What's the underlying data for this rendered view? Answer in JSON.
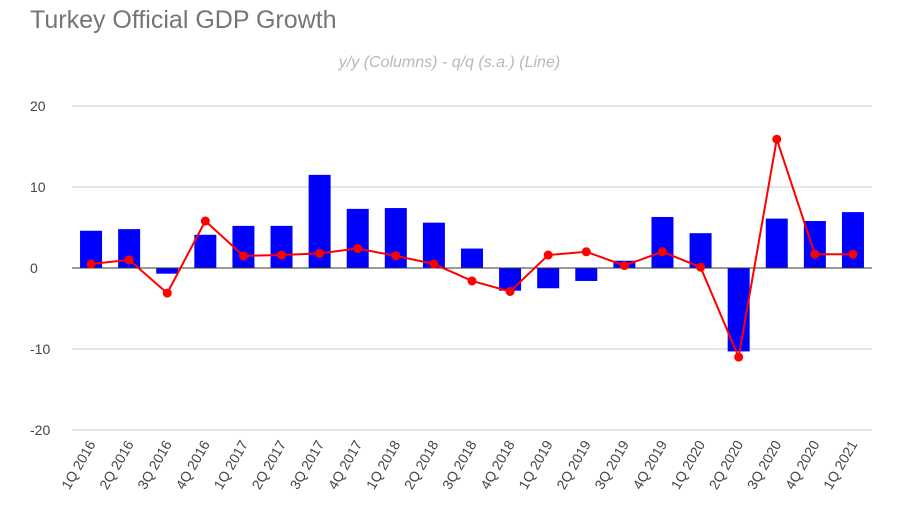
{
  "chart_data": {
    "type": "bar",
    "title": "Turkey Official GDP Growth",
    "subtitle": "y/y (Columns) - q/q (s.a.) (Line)",
    "xlabel": "",
    "ylabel": "",
    "ylim": [
      -20,
      20
    ],
    "yticks": [
      20,
      10,
      0,
      -10,
      -20
    ],
    "grid": true,
    "legend": "none",
    "categories": [
      "1Q 2016",
      "2Q 2016",
      "3Q 2016",
      "4Q 2016",
      "1Q 2017",
      "2Q 2017",
      "3Q 2017",
      "4Q 2017",
      "1Q 2018",
      "2Q 2018",
      "3Q 2018",
      "4Q 2018",
      "1Q 2019",
      "2Q 2019",
      "3Q 2019",
      "4Q 2019",
      "1Q 2020",
      "2Q 2020",
      "3Q 2020",
      "4Q 2020",
      "1Q 2021"
    ],
    "series": [
      {
        "type": "bar",
        "color": "#0000ff",
        "values": [
          4.6,
          4.8,
          -0.7,
          4.1,
          5.2,
          5.2,
          11.5,
          7.3,
          7.4,
          5.6,
          2.4,
          -2.8,
          -2.5,
          -1.6,
          0.9,
          6.3,
          4.3,
          -10.3,
          6.1,
          5.8,
          6.9
        ]
      },
      {
        "type": "line",
        "color": "#ff0000",
        "values": [
          0.5,
          1.0,
          -3.1,
          5.8,
          1.5,
          1.6,
          1.8,
          2.4,
          1.5,
          0.5,
          -1.6,
          -2.9,
          1.6,
          2.0,
          0.3,
          2.0,
          0.1,
          -11.0,
          15.9,
          1.7,
          1.7
        ]
      }
    ]
  }
}
